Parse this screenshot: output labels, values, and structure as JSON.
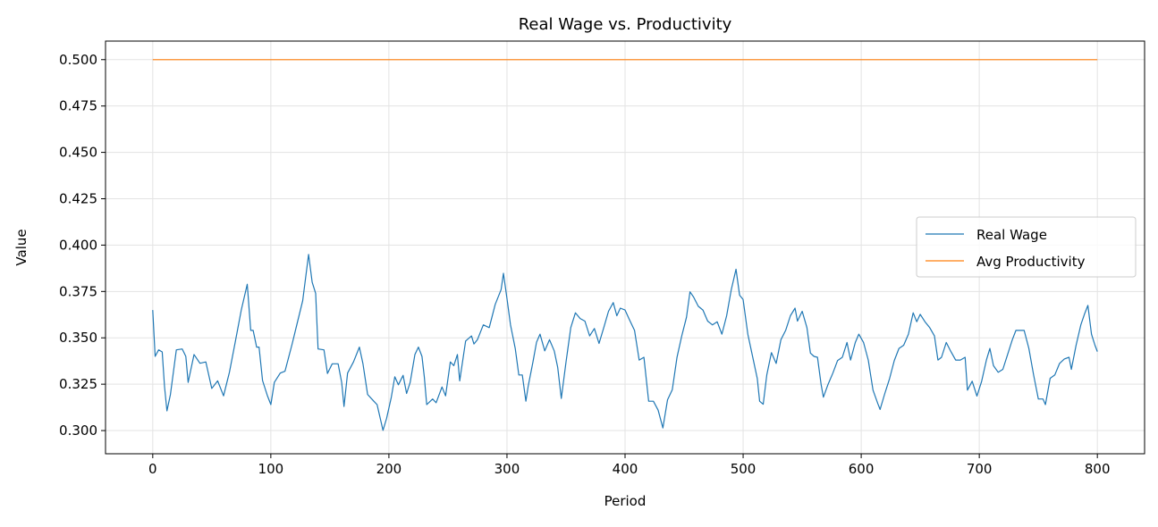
{
  "chart_data": {
    "type": "line",
    "title": "Real Wage vs. Productivity",
    "xlabel": "Period",
    "ylabel": "Value",
    "xlim": [
      -40,
      840
    ],
    "ylim": [
      0.2875,
      0.51
    ],
    "xticks": [
      0,
      100,
      200,
      300,
      400,
      500,
      600,
      700,
      800
    ],
    "yticks": [
      0.3,
      0.325,
      0.35,
      0.375,
      0.4,
      0.425,
      0.45,
      0.475,
      0.5
    ],
    "grid": true,
    "legend_position": "center-right",
    "series": [
      {
        "name": "Real Wage",
        "color": "#1f77b4",
        "x": [
          0,
          2,
          5,
          8,
          10,
          12,
          15,
          20,
          25,
          28,
          30,
          35,
          40,
          45,
          50,
          55,
          60,
          65,
          70,
          75,
          80,
          83,
          85,
          88,
          90,
          93,
          97,
          100,
          103,
          108,
          112,
          118,
          122,
          127,
          132,
          135,
          138,
          140,
          145,
          148,
          152,
          157,
          160,
          162,
          165,
          170,
          175,
          178,
          182,
          187,
          190,
          195,
          198,
          202,
          205,
          208,
          212,
          215,
          218,
          222,
          225,
          228,
          230,
          232,
          237,
          240,
          245,
          248,
          252,
          255,
          258,
          260,
          265,
          270,
          272,
          275,
          280,
          285,
          290,
          295,
          297,
          300,
          303,
          307,
          310,
          313,
          316,
          318,
          322,
          325,
          328,
          332,
          336,
          340,
          343,
          346,
          350,
          354,
          358,
          362,
          366,
          370,
          374,
          378,
          382,
          386,
          390,
          393,
          396,
          400,
          404,
          408,
          412,
          416,
          420,
          424,
          428,
          432,
          436,
          440,
          444,
          448,
          452,
          455,
          458,
          462,
          466,
          470,
          474,
          478,
          482,
          486,
          490,
          494,
          497,
          500,
          504,
          508,
          512,
          514,
          517,
          520,
          524,
          528,
          532,
          536,
          540,
          544,
          546,
          550,
          554,
          557,
          560,
          563,
          566,
          568,
          572,
          576,
          580,
          584,
          588,
          591,
          595,
          598,
          602,
          606,
          610,
          614,
          616,
          620,
          624,
          628,
          632,
          636,
          640,
          644,
          647,
          650,
          654,
          658,
          662,
          665,
          668,
          672,
          676,
          680,
          684,
          688,
          690,
          694,
          698,
          702,
          706,
          709,
          712,
          716,
          720,
          724,
          728,
          731,
          735,
          738,
          742,
          746,
          750,
          754,
          756,
          760,
          764,
          768,
          772,
          776,
          778,
          782,
          786,
          789,
          792,
          795,
          798,
          800
        ],
        "y": [
          0.365,
          0.34,
          0.3435,
          0.3424,
          0.3236,
          0.3106,
          0.3195,
          0.3435,
          0.344,
          0.34,
          0.326,
          0.341,
          0.3363,
          0.337,
          0.3227,
          0.3268,
          0.3187,
          0.3315,
          0.3483,
          0.3652,
          0.3789,
          0.354,
          0.354,
          0.345,
          0.345,
          0.327,
          0.319,
          0.314,
          0.326,
          0.331,
          0.332,
          0.3465,
          0.357,
          0.37,
          0.395,
          0.38,
          0.374,
          0.344,
          0.3435,
          0.3308,
          0.336,
          0.336,
          0.326,
          0.313,
          0.331,
          0.337,
          0.345,
          0.336,
          0.3195,
          0.316,
          0.314,
          0.3001,
          0.3065,
          0.318,
          0.329,
          0.3247,
          0.3298,
          0.32,
          0.326,
          0.341,
          0.345,
          0.34,
          0.329,
          0.314,
          0.317,
          0.315,
          0.3235,
          0.3187,
          0.337,
          0.335,
          0.341,
          0.3268,
          0.3483,
          0.351,
          0.3467,
          0.349,
          0.357,
          0.3555,
          0.368,
          0.376,
          0.3848,
          0.371,
          0.357,
          0.3443,
          0.33,
          0.33,
          0.3158,
          0.324,
          0.337,
          0.3476,
          0.352,
          0.343,
          0.349,
          0.343,
          0.334,
          0.3173,
          0.337,
          0.3555,
          0.3635,
          0.3604,
          0.359,
          0.351,
          0.355,
          0.347,
          0.3555,
          0.3643,
          0.369,
          0.3619,
          0.366,
          0.365,
          0.3594,
          0.354,
          0.338,
          0.3395,
          0.3158,
          0.3158,
          0.311,
          0.3014,
          0.3166,
          0.322,
          0.3395,
          0.351,
          0.3611,
          0.3748,
          0.372,
          0.367,
          0.365,
          0.359,
          0.357,
          0.3587,
          0.352,
          0.3619,
          0.376,
          0.387,
          0.373,
          0.3707,
          0.352,
          0.34,
          0.328,
          0.3158,
          0.3142,
          0.33,
          0.342,
          0.3362,
          0.349,
          0.354,
          0.3619,
          0.366,
          0.359,
          0.3643,
          0.3555,
          0.3418,
          0.34,
          0.3395,
          0.325,
          0.318,
          0.325,
          0.331,
          0.3378,
          0.3395,
          0.3475,
          0.338,
          0.3475,
          0.352,
          0.3475,
          0.338,
          0.3218,
          0.3146,
          0.3114,
          0.32,
          0.328,
          0.3378,
          0.3443,
          0.346,
          0.352,
          0.3635,
          0.3587,
          0.3627,
          0.3587,
          0.3555,
          0.351,
          0.338,
          0.3395,
          0.3475,
          0.3426,
          0.338,
          0.338,
          0.3395,
          0.3218,
          0.3266,
          0.3186,
          0.3266,
          0.338,
          0.3443,
          0.335,
          0.3314,
          0.333,
          0.341,
          0.349,
          0.354,
          0.354,
          0.354,
          0.3443,
          0.33,
          0.317,
          0.317,
          0.314,
          0.3282,
          0.33,
          0.3362,
          0.3386,
          0.3395,
          0.333,
          0.346,
          0.357,
          0.3627,
          0.3675,
          0.352,
          0.346,
          0.3426
        ]
      },
      {
        "name": "Avg Productivity",
        "color": "#ff7f0e",
        "x": [
          0,
          800
        ],
        "y": [
          0.5,
          0.5
        ]
      }
    ]
  }
}
